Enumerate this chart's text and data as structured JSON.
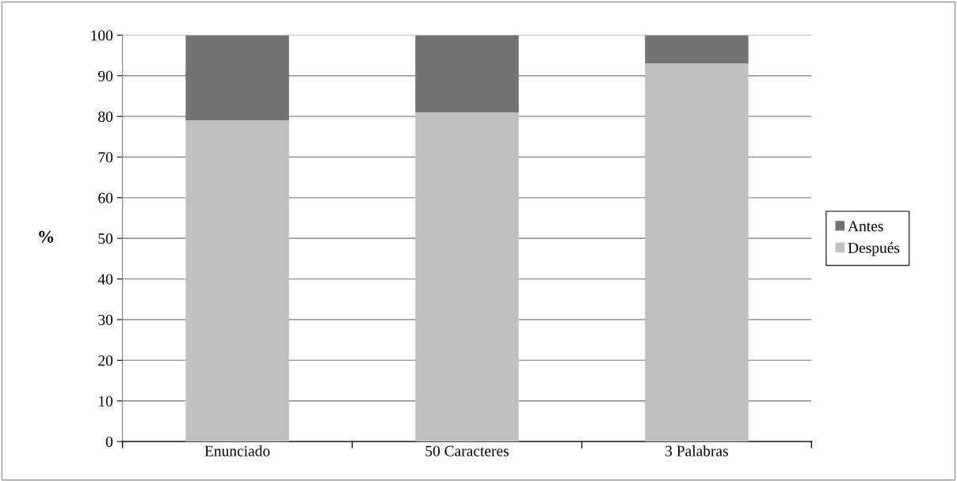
{
  "chart_data": {
    "type": "bar",
    "stacked": true,
    "ylabel": "%",
    "categories": [
      "Enunciado",
      "50 Caracteres",
      "3 Palabras"
    ],
    "series": [
      {
        "name": "Después",
        "color": "#bfbfbf",
        "values": [
          79,
          81,
          93
        ]
      },
      {
        "name": "Antes",
        "color": "#737373",
        "values": [
          21,
          19,
          7
        ]
      }
    ],
    "ylim": [
      0,
      100
    ],
    "yticks": [
      0,
      10,
      20,
      30,
      40,
      50,
      60,
      70,
      80,
      90,
      100
    ],
    "grid": "y",
    "legend": "right"
  }
}
